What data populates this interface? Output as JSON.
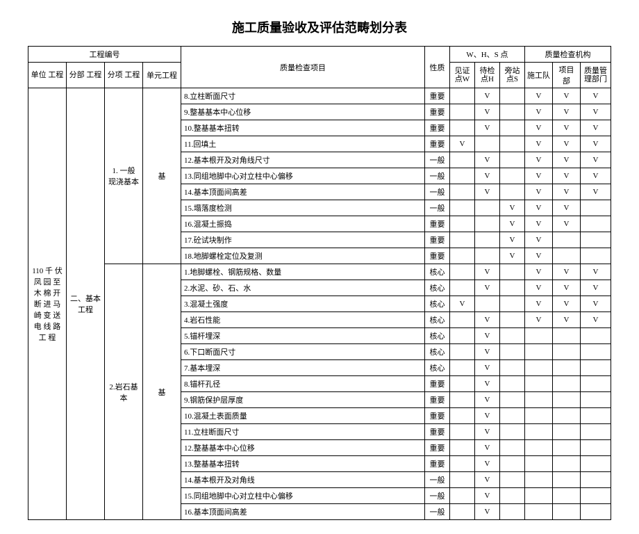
{
  "title": "施工质量验收及评估范畴划分表",
  "header": {
    "proj_no": "工程编号",
    "unit": "单位\n工程",
    "div": "分部\n工程",
    "sub": "分项\n工程",
    "element": "单元工程",
    "inspect": "质量检查项目",
    "nature": "性质",
    "whs": "W、H、S 点",
    "w": "见证\n点W",
    "h": "待检\n点H",
    "s": "旁站\n点S",
    "org": "质量检查机构",
    "o1": "施工队",
    "o2": "项目 部",
    "o3": "质量管\n理部门"
  },
  "col1": "110 千 伏\n凤 园 至\n木 棉 开\n断 进 马\n崎 变 送\n电 线 路\n工 程",
  "col2": "二、基本\n工程",
  "groupA": {
    "sub": "1. 一般\n现浇基本",
    "elem": "基"
  },
  "groupB": {
    "sub": "2.岩石基\n本",
    "elem": "基"
  },
  "V": "V",
  "rows": [
    {
      "item": "8.立柱断面尺寸",
      "nat": "重要",
      "w": "",
      "h": "V",
      "s": "",
      "o1": "V",
      "o2": "V",
      "o3": "V"
    },
    {
      "item": "9.整基基本中心位移",
      "nat": "重要",
      "w": "",
      "h": "V",
      "s": "",
      "o1": "V",
      "o2": "V",
      "o3": "V"
    },
    {
      "item": "10.整基基本扭转",
      "nat": "重要",
      "w": "",
      "h": "V",
      "s": "",
      "o1": "V",
      "o2": "V",
      "o3": "V"
    },
    {
      "item": "11.回填土",
      "nat": "重要",
      "w": "V",
      "h": "",
      "s": "",
      "o1": "V",
      "o2": "V",
      "o3": "V"
    },
    {
      "item": "12.基本根开及对角线尺寸",
      "nat": "一般",
      "w": "",
      "h": "V",
      "s": "",
      "o1": "V",
      "o2": "V",
      "o3": "V"
    },
    {
      "item": "13.同组地脚中心对立柱中心偏移",
      "nat": "一般",
      "w": "",
      "h": "V",
      "s": "",
      "o1": "V",
      "o2": "V",
      "o3": "V"
    },
    {
      "item": "14.基本顶面间高差",
      "nat": "一般",
      "w": "",
      "h": "V",
      "s": "",
      "o1": "V",
      "o2": "V",
      "o3": "V"
    },
    {
      "item": "15.塌落度检测",
      "nat": "一般",
      "w": "",
      "h": "",
      "s": "V",
      "o1": "V",
      "o2": "V",
      "o3": ""
    },
    {
      "item": "16.混凝土振捣",
      "nat": "重要",
      "w": "",
      "h": "",
      "s": "V",
      "o1": "V",
      "o2": "V",
      "o3": ""
    },
    {
      "item": "17.砼试块制作",
      "nat": "重要",
      "w": "",
      "h": "",
      "s": "V",
      "o1": "V",
      "o2": "",
      "o3": ""
    },
    {
      "item": "18.地脚螺栓定位及复测",
      "nat": "重要",
      "w": "",
      "h": "",
      "s": "V",
      "o1": "V",
      "o2": "",
      "o3": ""
    },
    {
      "item": "1.地脚螺栓、钢筋规格、数量",
      "nat": "核心",
      "w": "",
      "h": "V",
      "s": "",
      "o1": "V",
      "o2": "V",
      "o3": "V"
    },
    {
      "item": "2.水泥、砂、石、水",
      "nat": "核心",
      "w": "",
      "h": "V",
      "s": "",
      "o1": "V",
      "o2": "V",
      "o3": "V"
    },
    {
      "item": "3.混凝土强度",
      "nat": "核心",
      "w": "V",
      "h": "",
      "s": "",
      "o1": "V",
      "o2": "V",
      "o3": "V"
    },
    {
      "item": "4.岩石性能",
      "nat": "核心",
      "w": "",
      "h": "V",
      "s": "",
      "o1": "V",
      "o2": "V",
      "o3": "V"
    },
    {
      "item": "5.锚杆埋深",
      "nat": "核心",
      "w": "",
      "h": "V",
      "s": "",
      "o1": "",
      "o2": "",
      "o3": ""
    },
    {
      "item": "6.下口断面尺寸",
      "nat": "核心",
      "w": "",
      "h": "V",
      "s": "",
      "o1": "",
      "o2": "",
      "o3": ""
    },
    {
      "item": "7.基本埋深",
      "nat": "核心",
      "w": "",
      "h": "V",
      "s": "",
      "o1": "",
      "o2": "",
      "o3": ""
    },
    {
      "item": "8.锚杆孔径",
      "nat": "重要",
      "w": "",
      "h": "V",
      "s": "",
      "o1": "",
      "o2": "",
      "o3": ""
    },
    {
      "item": "9.钢筋保护层厚度",
      "nat": "重要",
      "w": "",
      "h": "V",
      "s": "",
      "o1": "",
      "o2": "",
      "o3": ""
    },
    {
      "item": "10.混凝土表面质量",
      "nat": "重要",
      "w": "",
      "h": "V",
      "s": "",
      "o1": "",
      "o2": "",
      "o3": ""
    },
    {
      "item": "11.立柱断面尺寸",
      "nat": "重要",
      "w": "",
      "h": "V",
      "s": "",
      "o1": "",
      "o2": "",
      "o3": ""
    },
    {
      "item": "12.整基基本中心位移",
      "nat": "重要",
      "w": "",
      "h": "V",
      "s": "",
      "o1": "",
      "o2": "",
      "o3": ""
    },
    {
      "item": "13.整基基本扭转",
      "nat": "重要",
      "w": "",
      "h": "V",
      "s": "",
      "o1": "",
      "o2": "",
      "o3": ""
    },
    {
      "item": "14.基本根开及对角线",
      "nat": "一般",
      "w": "",
      "h": "V",
      "s": "",
      "o1": "",
      "o2": "",
      "o3": ""
    },
    {
      "item": "15.同组地脚中心对立柱中心偏移",
      "nat": "一般",
      "w": "",
      "h": "V",
      "s": "",
      "o1": "",
      "o2": "",
      "o3": ""
    },
    {
      "item": "16.基本顶面间高差",
      "nat": "一般",
      "w": "",
      "h": "V",
      "s": "",
      "o1": "",
      "o2": "",
      "o3": ""
    }
  ]
}
